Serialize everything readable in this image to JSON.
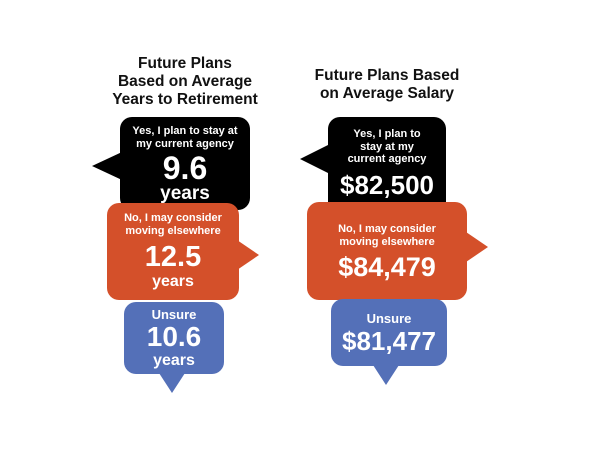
{
  "left": {
    "title_lines": [
      "Future Plans",
      "Based on Average",
      "Years to Retirement"
    ],
    "stay": {
      "label_lines": [
        "Yes, I plan to stay at",
        "my current agency"
      ],
      "value": "9.6",
      "unit": "years"
    },
    "consider": {
      "label_lines": [
        "No, I may consider",
        "moving elsewhere"
      ],
      "value": "12.5",
      "unit": "years"
    },
    "unsure": {
      "label": "Unsure",
      "value": "10.6",
      "unit": "years"
    }
  },
  "right": {
    "title_lines": [
      "Future Plans Based",
      "on Average Salary"
    ],
    "stay": {
      "label_lines": [
        "Yes, I plan to",
        "stay at my",
        "current agency"
      ],
      "value": "$82,500"
    },
    "consider": {
      "label_lines": [
        "No, I may consider",
        "moving elsewhere"
      ],
      "value": "$84,479"
    },
    "unsure": {
      "label": "Unsure",
      "value": "$81,477"
    }
  },
  "colors": {
    "stay": "#000000",
    "consider": "#d4502a",
    "unsure": "#5470b8"
  }
}
